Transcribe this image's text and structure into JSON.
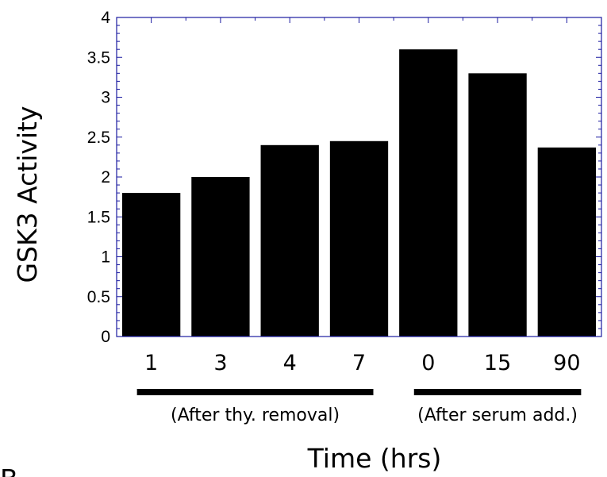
{
  "chart_data": {
    "type": "bar",
    "categories": [
      "1",
      "3",
      "4",
      "7",
      "0",
      "15",
      "90"
    ],
    "values": [
      1.8,
      2.0,
      2.4,
      2.45,
      3.6,
      3.3,
      2.37
    ],
    "ylabel": "GSK3 Activity",
    "xlabel": "Time (hrs)",
    "ylim": [
      0,
      4
    ],
    "yticks": [
      "0",
      "0.5",
      "1",
      "1.5",
      "2",
      "2.5",
      "3",
      "3.5",
      "4"
    ],
    "groups": [
      {
        "label": "(After thy. removal)",
        "categories": [
          "1",
          "3",
          "4",
          "7"
        ]
      },
      {
        "label": "(After serum add.)",
        "categories": [
          "0",
          "15",
          "90"
        ]
      }
    ],
    "grid": false,
    "colors": {
      "bar": "#000000",
      "axis": "#1a1aa0"
    }
  },
  "fragment_label": "B"
}
